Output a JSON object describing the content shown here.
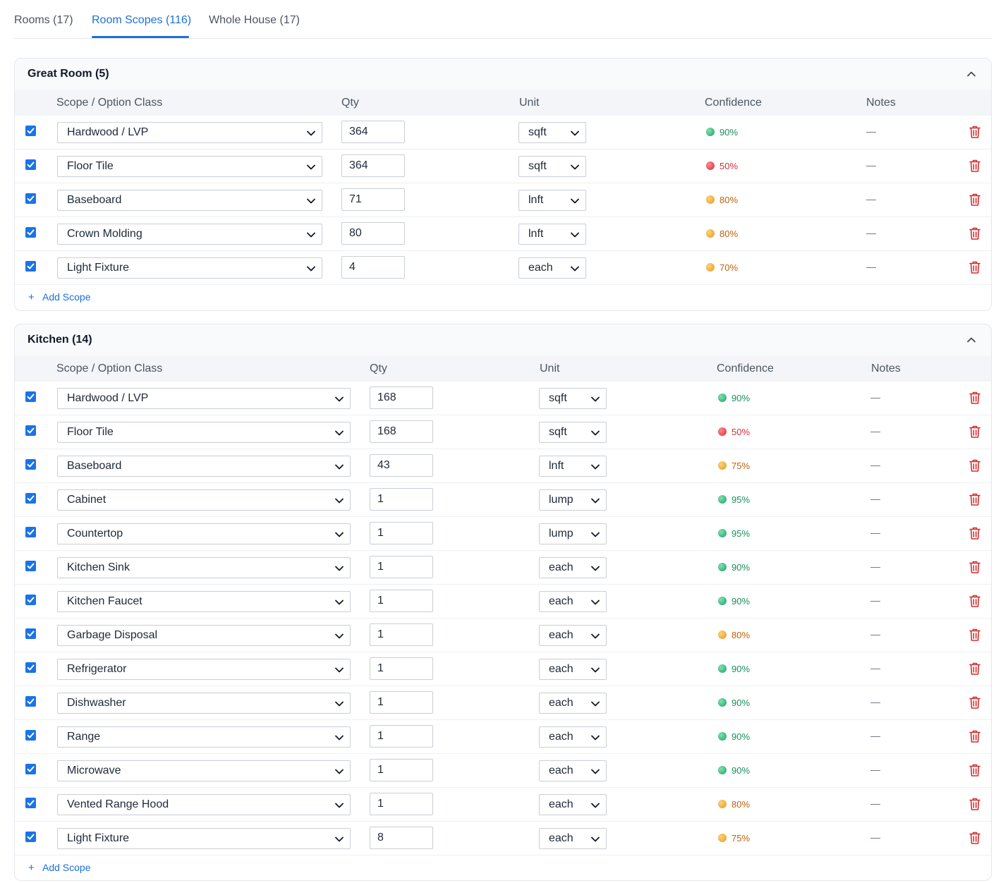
{
  "tabs": [
    {
      "label": "Rooms (17)",
      "active": false
    },
    {
      "label": "Room Scopes (116)",
      "active": true
    },
    {
      "label": "Whole House (17)",
      "active": false
    }
  ],
  "columns": {
    "scope": "Scope / Option Class",
    "qty": "Qty",
    "unit": "Unit",
    "confidence": "Confidence",
    "notes": "Notes"
  },
  "add_scope_label": "Add Scope",
  "colors": {
    "accent": "#1d6fd8",
    "checkbox": "#1a73e8",
    "high": "#1a8f5a",
    "medium": "#c2620b",
    "low": "#d0333b",
    "delete": "#d32f2f"
  },
  "rooms": [
    {
      "title": "Great Room (5)",
      "rows": [
        {
          "checked": true,
          "scope": "Hardwood / LVP",
          "qty": "364",
          "unit": "sqft",
          "confidence": "90%",
          "level": "high",
          "notes": "—"
        },
        {
          "checked": true,
          "scope": "Floor Tile",
          "qty": "364",
          "unit": "sqft",
          "confidence": "50%",
          "level": "low",
          "notes": "—"
        },
        {
          "checked": true,
          "scope": "Baseboard",
          "qty": "71",
          "unit": "lnft",
          "confidence": "80%",
          "level": "medium",
          "notes": "—"
        },
        {
          "checked": true,
          "scope": "Crown Molding",
          "qty": "80",
          "unit": "lnft",
          "confidence": "80%",
          "level": "medium",
          "notes": "—"
        },
        {
          "checked": true,
          "scope": "Light Fixture",
          "qty": "4",
          "unit": "each",
          "confidence": "70%",
          "level": "medium",
          "notes": "—"
        }
      ]
    },
    {
      "title": "Kitchen (14)",
      "rows": [
        {
          "checked": true,
          "scope": "Hardwood / LVP",
          "qty": "168",
          "unit": "sqft",
          "confidence": "90%",
          "level": "high",
          "notes": "—"
        },
        {
          "checked": true,
          "scope": "Floor Tile",
          "qty": "168",
          "unit": "sqft",
          "confidence": "50%",
          "level": "low",
          "notes": "—"
        },
        {
          "checked": true,
          "scope": "Baseboard",
          "qty": "43",
          "unit": "lnft",
          "confidence": "75%",
          "level": "medium",
          "notes": "—"
        },
        {
          "checked": true,
          "scope": "Cabinet",
          "qty": "1",
          "unit": "lump",
          "confidence": "95%",
          "level": "high",
          "notes": "—"
        },
        {
          "checked": true,
          "scope": "Countertop",
          "qty": "1",
          "unit": "lump",
          "confidence": "95%",
          "level": "high",
          "notes": "—"
        },
        {
          "checked": true,
          "scope": "Kitchen Sink",
          "qty": "1",
          "unit": "each",
          "confidence": "90%",
          "level": "high",
          "notes": "—"
        },
        {
          "checked": true,
          "scope": "Kitchen Faucet",
          "qty": "1",
          "unit": "each",
          "confidence": "90%",
          "level": "high",
          "notes": "—"
        },
        {
          "checked": true,
          "scope": "Garbage Disposal",
          "qty": "1",
          "unit": "each",
          "confidence": "80%",
          "level": "medium",
          "notes": "—"
        },
        {
          "checked": true,
          "scope": "Refrigerator",
          "qty": "1",
          "unit": "each",
          "confidence": "90%",
          "level": "high",
          "notes": "—"
        },
        {
          "checked": true,
          "scope": "Dishwasher",
          "qty": "1",
          "unit": "each",
          "confidence": "90%",
          "level": "high",
          "notes": "—"
        },
        {
          "checked": true,
          "scope": "Range",
          "qty": "1",
          "unit": "each",
          "confidence": "90%",
          "level": "high",
          "notes": "—"
        },
        {
          "checked": true,
          "scope": "Microwave",
          "qty": "1",
          "unit": "each",
          "confidence": "90%",
          "level": "high",
          "notes": "—"
        },
        {
          "checked": true,
          "scope": "Vented Range Hood",
          "qty": "1",
          "unit": "each",
          "confidence": "80%",
          "level": "medium",
          "notes": "—"
        },
        {
          "checked": true,
          "scope": "Light Fixture",
          "qty": "8",
          "unit": "each",
          "confidence": "75%",
          "level": "medium",
          "notes": "—"
        }
      ]
    }
  ]
}
